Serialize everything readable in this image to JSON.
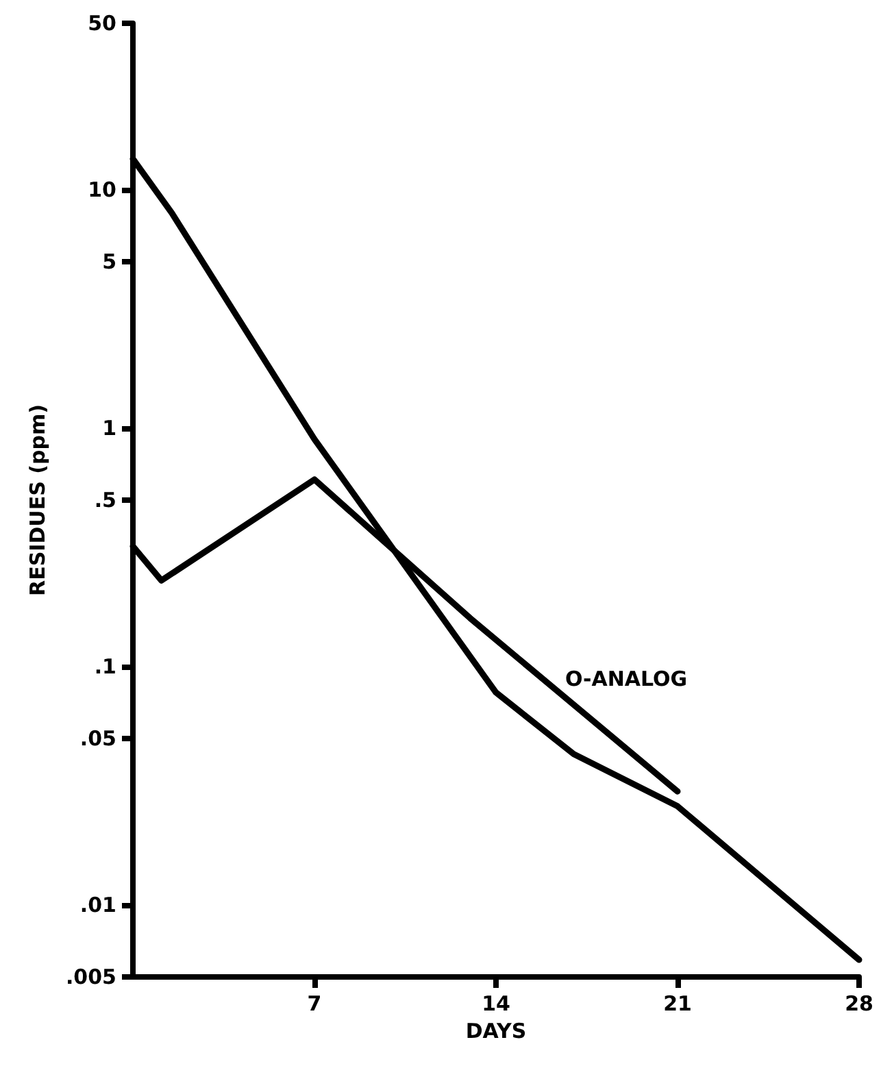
{
  "chart_data": {
    "type": "line",
    "xlabel": "DAYS",
    "ylabel": "RESIDUES (ppm)",
    "series": [
      {
        "color": "#000000",
        "x": [
          0,
          1.5,
          7,
          14,
          17,
          21,
          28
        ],
        "values": [
          13.5,
          8,
          0.9,
          0.078,
          0.043,
          0.026,
          0.0059
        ]
      },
      {
        "name": "O-ANALOG",
        "color": "#000000",
        "x": [
          0,
          1.1,
          7,
          13,
          21
        ],
        "values": [
          0.32,
          0.23,
          0.61,
          0.16,
          0.03
        ]
      }
    ],
    "xlim": [
      0,
      28
    ],
    "xticks": [
      7,
      14,
      21,
      28
    ],
    "ylim": [
      0.005,
      50
    ],
    "yticks": [
      50,
      10,
      5,
      1,
      {
        "value": 0.5,
        "label": ".5"
      },
      {
        "value": 0.1,
        "label": ".1"
      },
      {
        "value": 0.05,
        "label": ".05"
      },
      {
        "value": 0.01,
        "label": ".01"
      },
      {
        "value": 0.005,
        "label": ".005"
      }
    ],
    "log": "y",
    "grid": false,
    "legend": false,
    "marker": "none",
    "line_style": "solid"
  }
}
